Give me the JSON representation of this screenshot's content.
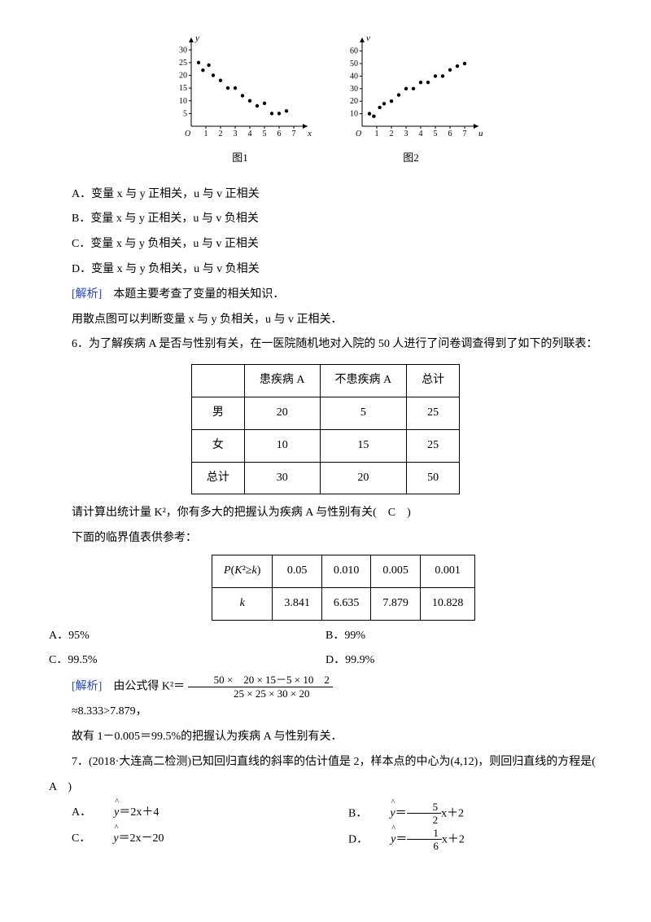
{
  "charts": {
    "chart1": {
      "type": "scatter",
      "caption": "图1",
      "x_label": "x",
      "y_label": "y",
      "x_ticks": [
        1,
        2,
        3,
        4,
        5,
        6,
        7
      ],
      "y_ticks": [
        5,
        10,
        15,
        20,
        25,
        30
      ],
      "points": [
        [
          0.5,
          25
        ],
        [
          0.8,
          22
        ],
        [
          1.2,
          24
        ],
        [
          1.5,
          20
        ],
        [
          2,
          18
        ],
        [
          2.5,
          15
        ],
        [
          3,
          15
        ],
        [
          3.5,
          12
        ],
        [
          4,
          10
        ],
        [
          4.5,
          8
        ],
        [
          5,
          9
        ],
        [
          5.5,
          5
        ],
        [
          6,
          5
        ],
        [
          6.5,
          6
        ]
      ],
      "point_color": "#000000",
      "axis_color": "#000000",
      "tick_fontsize": 10
    },
    "chart2": {
      "type": "scatter",
      "caption": "图2",
      "x_label": "u",
      "y_label": "v",
      "x_ticks": [
        1,
        2,
        3,
        4,
        5,
        6,
        7
      ],
      "y_ticks": [
        10,
        20,
        30,
        40,
        50,
        60
      ],
      "points": [
        [
          0.5,
          10
        ],
        [
          0.8,
          8
        ],
        [
          1.2,
          15
        ],
        [
          1.5,
          18
        ],
        [
          2,
          20
        ],
        [
          2.5,
          25
        ],
        [
          3,
          30
        ],
        [
          3.5,
          30
        ],
        [
          4,
          35
        ],
        [
          4.5,
          35
        ],
        [
          5,
          40
        ],
        [
          5.5,
          40
        ],
        [
          6,
          45
        ],
        [
          6.5,
          48
        ],
        [
          7,
          50
        ]
      ],
      "point_color": "#000000",
      "axis_color": "#000000",
      "tick_fontsize": 10
    }
  },
  "q5": {
    "optA": "A．变量 x 与 y 正相关，u 与 v 正相关",
    "optB": "B．变量 x 与 y 正相关，u 与 v 负相关",
    "optC": "C．变量 x 与 y 负相关，u 与 v 正相关",
    "optD": "D．变量 x 与 y 负相关，u 与 v 负相关",
    "analysis_label": "[解析]",
    "analysis1": "本题主要考查了变量的相关知识．",
    "analysis2": "用散点图可以判断变量 x 与 y 负相关，u 与 v 正相关．"
  },
  "q6": {
    "stem": "6．为了解疾病 A 是否与性别有关，在一医院随机地对入院的 50 人进行了问卷调查得到了如下的列联表：",
    "table": {
      "headers": [
        "",
        "患疾病 A",
        "不患疾病 A",
        "总计"
      ],
      "rows": [
        [
          "男",
          "20",
          "5",
          "25"
        ],
        [
          "女",
          "10",
          "15",
          "25"
        ],
        [
          "总计",
          "30",
          "20",
          "50"
        ]
      ]
    },
    "ask": "请计算出统计量 K²，你有多大的把握认为疾病 A 与性别有关(　C　)",
    "hint": "下面的临界值表供参考：",
    "critical": {
      "row1": [
        "P(K²≥k)",
        "0.05",
        "0.010",
        "0.005",
        "0.001"
      ],
      "row2": [
        "k",
        "3.841",
        "6.635",
        "7.879",
        "10.828"
      ]
    },
    "optA": "A．95%",
    "optB": "B．99%",
    "optC": "C．99.5%",
    "optD": "D．99.9%",
    "analysis_label": "[解析]",
    "analysis_prefix": "由公式得 K²＝",
    "frac_num": "50 ×　20 × 15－5 × 10　2",
    "frac_den": "25 × 25 × 30 × 20",
    "analysis_line2": "≈8.333>7.879，",
    "analysis_line3": "故有 1－0.005＝99.5%的把握认为疾病 A 与性别有关．"
  },
  "q7": {
    "stem": "7．(2018·大连高二检测)已知回归直线的斜率的估计值是 2，样本点的中心为(4,12)，则回归直线的方程是(　A　)",
    "optA_pre": "A．",
    "optA_eq": "＝2x＋4",
    "optB_pre": "B．",
    "optB_eq_num": "5",
    "optB_eq_den": "2",
    "optB_eq_suf": "x＋2",
    "optC_pre": "C．",
    "optC_eq": "＝2x－20",
    "optD_pre": "D．",
    "optD_eq_num": "1",
    "optD_eq_den": "6",
    "optD_eq_suf": "x＋2"
  }
}
